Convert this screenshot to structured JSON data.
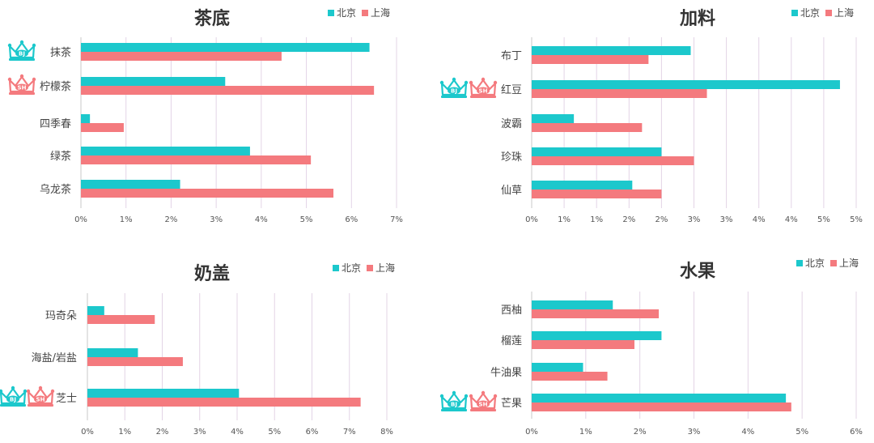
{
  "colors": {
    "beijing": "#1CC8CC",
    "shanghai": "#F47A7E",
    "grid": "#E3D4E6",
    "axis": "#C8C8C8"
  },
  "crown_labels": {
    "beijing": "BJ",
    "shanghai": "SH"
  },
  "chart_data": [
    {
      "type": "bar",
      "orientation": "horizontal",
      "title": "茶底",
      "categories": [
        "抹茶",
        "柠檬茶",
        "四季春",
        "绿茶",
        "乌龙茶"
      ],
      "series": [
        {
          "name": "北京",
          "values": [
            6.4,
            3.2,
            0.2,
            3.75,
            2.2
          ]
        },
        {
          "name": "上海",
          "values": [
            4.45,
            6.5,
            0.95,
            5.1,
            5.6
          ]
        }
      ],
      "xlim": [
        0,
        7
      ],
      "xticks": [
        "0%",
        "1%",
        "2%",
        "3%",
        "4%",
        "5%",
        "6%",
        "7%"
      ],
      "grid": true,
      "legend": "top-right",
      "crowns": [
        [
          "beijing"
        ],
        [
          "shanghai"
        ],
        [],
        [],
        []
      ]
    },
    {
      "type": "bar",
      "orientation": "horizontal",
      "title": "加料",
      "categories": [
        "布丁",
        "红豆",
        "波霸",
        "珍珠",
        "仙草"
      ],
      "series": [
        {
          "name": "北京",
          "values": [
            2.45,
            4.75,
            0.65,
            2.0,
            1.55
          ]
        },
        {
          "name": "上海",
          "values": [
            1.8,
            2.7,
            1.7,
            2.5,
            2.0
          ]
        }
      ],
      "xlim": [
        0,
        5
      ],
      "xticks": [
        "0%",
        "1%",
        "1%",
        "2%",
        "2%",
        "3%",
        "3%",
        "4%",
        "4%",
        "5%",
        "5%"
      ],
      "grid": true,
      "legend": "top-right",
      "crowns": [
        [],
        [
          "beijing",
          "shanghai"
        ],
        [],
        [],
        []
      ]
    },
    {
      "type": "bar",
      "orientation": "horizontal",
      "title": "奶盖",
      "categories": [
        "玛奇朵",
        "海盐/岩盐",
        "芝士"
      ],
      "series": [
        {
          "name": "北京",
          "values": [
            0.45,
            1.35,
            4.05
          ]
        },
        {
          "name": "上海",
          "values": [
            1.8,
            2.55,
            7.3
          ]
        }
      ],
      "xlim": [
        0,
        8
      ],
      "xticks": [
        "0%",
        "1%",
        "2%",
        "3%",
        "4%",
        "5%",
        "6%",
        "7%",
        "8%"
      ],
      "grid": true,
      "legend": "top-right",
      "crowns": [
        [],
        [],
        [
          "beijing",
          "shanghai"
        ]
      ]
    },
    {
      "type": "bar",
      "orientation": "horizontal",
      "title": "水果",
      "categories": [
        "西柚",
        "榴莲",
        "牛油果",
        "芒果"
      ],
      "series": [
        {
          "name": "北京",
          "values": [
            1.5,
            2.4,
            0.95,
            4.7
          ]
        },
        {
          "name": "上海",
          "values": [
            2.35,
            1.9,
            1.4,
            4.8
          ]
        }
      ],
      "xlim": [
        0,
        6
      ],
      "xticks": [
        "0%",
        "1%",
        "2%",
        "3%",
        "4%",
        "5%",
        "6%"
      ],
      "grid": true,
      "legend": "top-right",
      "crowns": [
        [],
        [],
        [],
        [
          "beijing",
          "shanghai"
        ]
      ]
    }
  ]
}
